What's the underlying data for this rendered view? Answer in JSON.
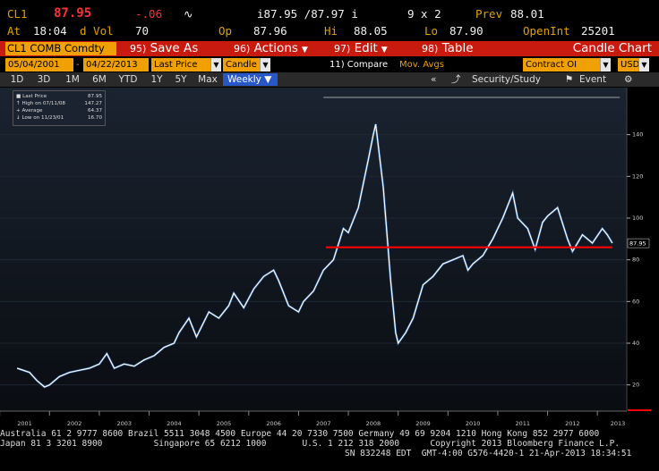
{
  "header": {
    "ticker": "CL1",
    "last": "87.95",
    "change": "-.06",
    "bid_ask": "i87.95 /87.97 i",
    "size": "9 x 2",
    "prev_label": "Prev",
    "prev": "88.01",
    "at_label": "At",
    "time": "18:04",
    "dvol_label": "d Vol",
    "dvol": "70",
    "op_label": "Op",
    "open": "87.96",
    "hi_label": "Hi",
    "hi": "88.05",
    "lo_label": "Lo",
    "lo": "87.90",
    "openint_label": "OpenInt",
    "openint": "25201"
  },
  "actions": {
    "security": "CL1 COMB Comdty",
    "save": "Save As",
    "save_num": "95)",
    "actions": "Actions",
    "actions_num": "96)",
    "edit": "Edit",
    "edit_num": "97)",
    "table": "Table",
    "table_num": "98)",
    "title": "Candle Chart"
  },
  "settings": {
    "start_date": "05/04/2001",
    "end_date": "04/22/2013",
    "field": "Last Price",
    "style": "Candle",
    "compare": "11) Compare",
    "mov_avgs": "Mov. Avgs",
    "contract": "Contract OI",
    "currency": "USD"
  },
  "tabs": {
    "items": [
      "1D",
      "3D",
      "1M",
      "6M",
      "YTD",
      "1Y",
      "5Y",
      "Max"
    ],
    "period": "Weekly",
    "security_study": "Security/Study",
    "event": "Event"
  },
  "legend": {
    "last_label": "Last Price",
    "last_value": "87.95",
    "high_label": "High on 07/11/08",
    "high_value": "147.27",
    "avg_label": "Average",
    "avg_value": "64.37",
    "low_label": "Low on 11/23/01",
    "low_value": "16.70"
  },
  "footer": {
    "line1": "Australia 61 2 9777 8600 Brazil 5511 3048 4500 Europe 44 20 7330 7500 Germany 49 69 9204 1210 Hong Kong 852 2977 6000",
    "line2": "Japan 81 3 3201 8900          Singapore 65 6212 1000       U.S. 1 212 318 2000      Copyright 2013 Bloomberg Finance L.P.",
    "line3": "SN 832248 EDT  GMT-4:00 G576-4420-1 21-Apr-2013 18:34:51"
  },
  "colors": {
    "accent_red": "#c81a0e",
    "amber": "#f0a000",
    "price_line": "#ffffff",
    "level_line": "#ff0000",
    "selected_tab": "#2858c8"
  },
  "chart_data": {
    "type": "line",
    "title": "",
    "xlabel": "",
    "ylabel": "",
    "x": [
      2001.35,
      2001.6,
      2001.75,
      2001.9,
      2002.0,
      2002.2,
      2002.4,
      2002.6,
      2002.8,
      2003.0,
      2003.15,
      2003.3,
      2003.5,
      2003.7,
      2003.9,
      2004.1,
      2004.3,
      2004.5,
      2004.6,
      2004.8,
      2004.95,
      2005.2,
      2005.4,
      2005.6,
      2005.7,
      2005.9,
      2006.1,
      2006.3,
      2006.5,
      2006.6,
      2006.8,
      2007.0,
      2007.1,
      2007.3,
      2007.5,
      2007.7,
      2007.9,
      2008.0,
      2008.2,
      2008.4,
      2008.5,
      2008.55,
      2008.7,
      2008.85,
      2008.95,
      2009.0,
      2009.15,
      2009.3,
      2009.5,
      2009.7,
      2009.9,
      2010.1,
      2010.3,
      2010.4,
      2010.5,
      2010.7,
      2010.9,
      2011.1,
      2011.3,
      2011.4,
      2011.6,
      2011.75,
      2011.9,
      2012.0,
      2012.2,
      2012.4,
      2012.5,
      2012.7,
      2012.9,
      2013.1,
      2013.2,
      2013.3
    ],
    "y": [
      28,
      26,
      22,
      19,
      20,
      24,
      26,
      27,
      28,
      30,
      35,
      28,
      30,
      29,
      32,
      34,
      38,
      40,
      45,
      52,
      43,
      55,
      52,
      58,
      64,
      57,
      66,
      72,
      75,
      70,
      58,
      55,
      60,
      65,
      75,
      80,
      95,
      93,
      105,
      128,
      140,
      145,
      115,
      70,
      45,
      40,
      45,
      52,
      68,
      72,
      78,
      80,
      82,
      75,
      78,
      82,
      90,
      100,
      112,
      100,
      95,
      85,
      98,
      101,
      105,
      90,
      84,
      92,
      88,
      95,
      92,
      88
    ],
    "level": 86,
    "last": 87.95,
    "ylim": [
      10,
      160
    ],
    "xlim": [
      2001.15,
      2013.5
    ],
    "yticks": [
      20,
      40,
      60,
      80,
      100,
      120,
      140
    ],
    "xticks": [
      "2001",
      "2002",
      "2003",
      "2004",
      "2005",
      "2006",
      "2007",
      "2008",
      "2009",
      "2010",
      "2011",
      "2012",
      "2013"
    ],
    "grid": false
  }
}
